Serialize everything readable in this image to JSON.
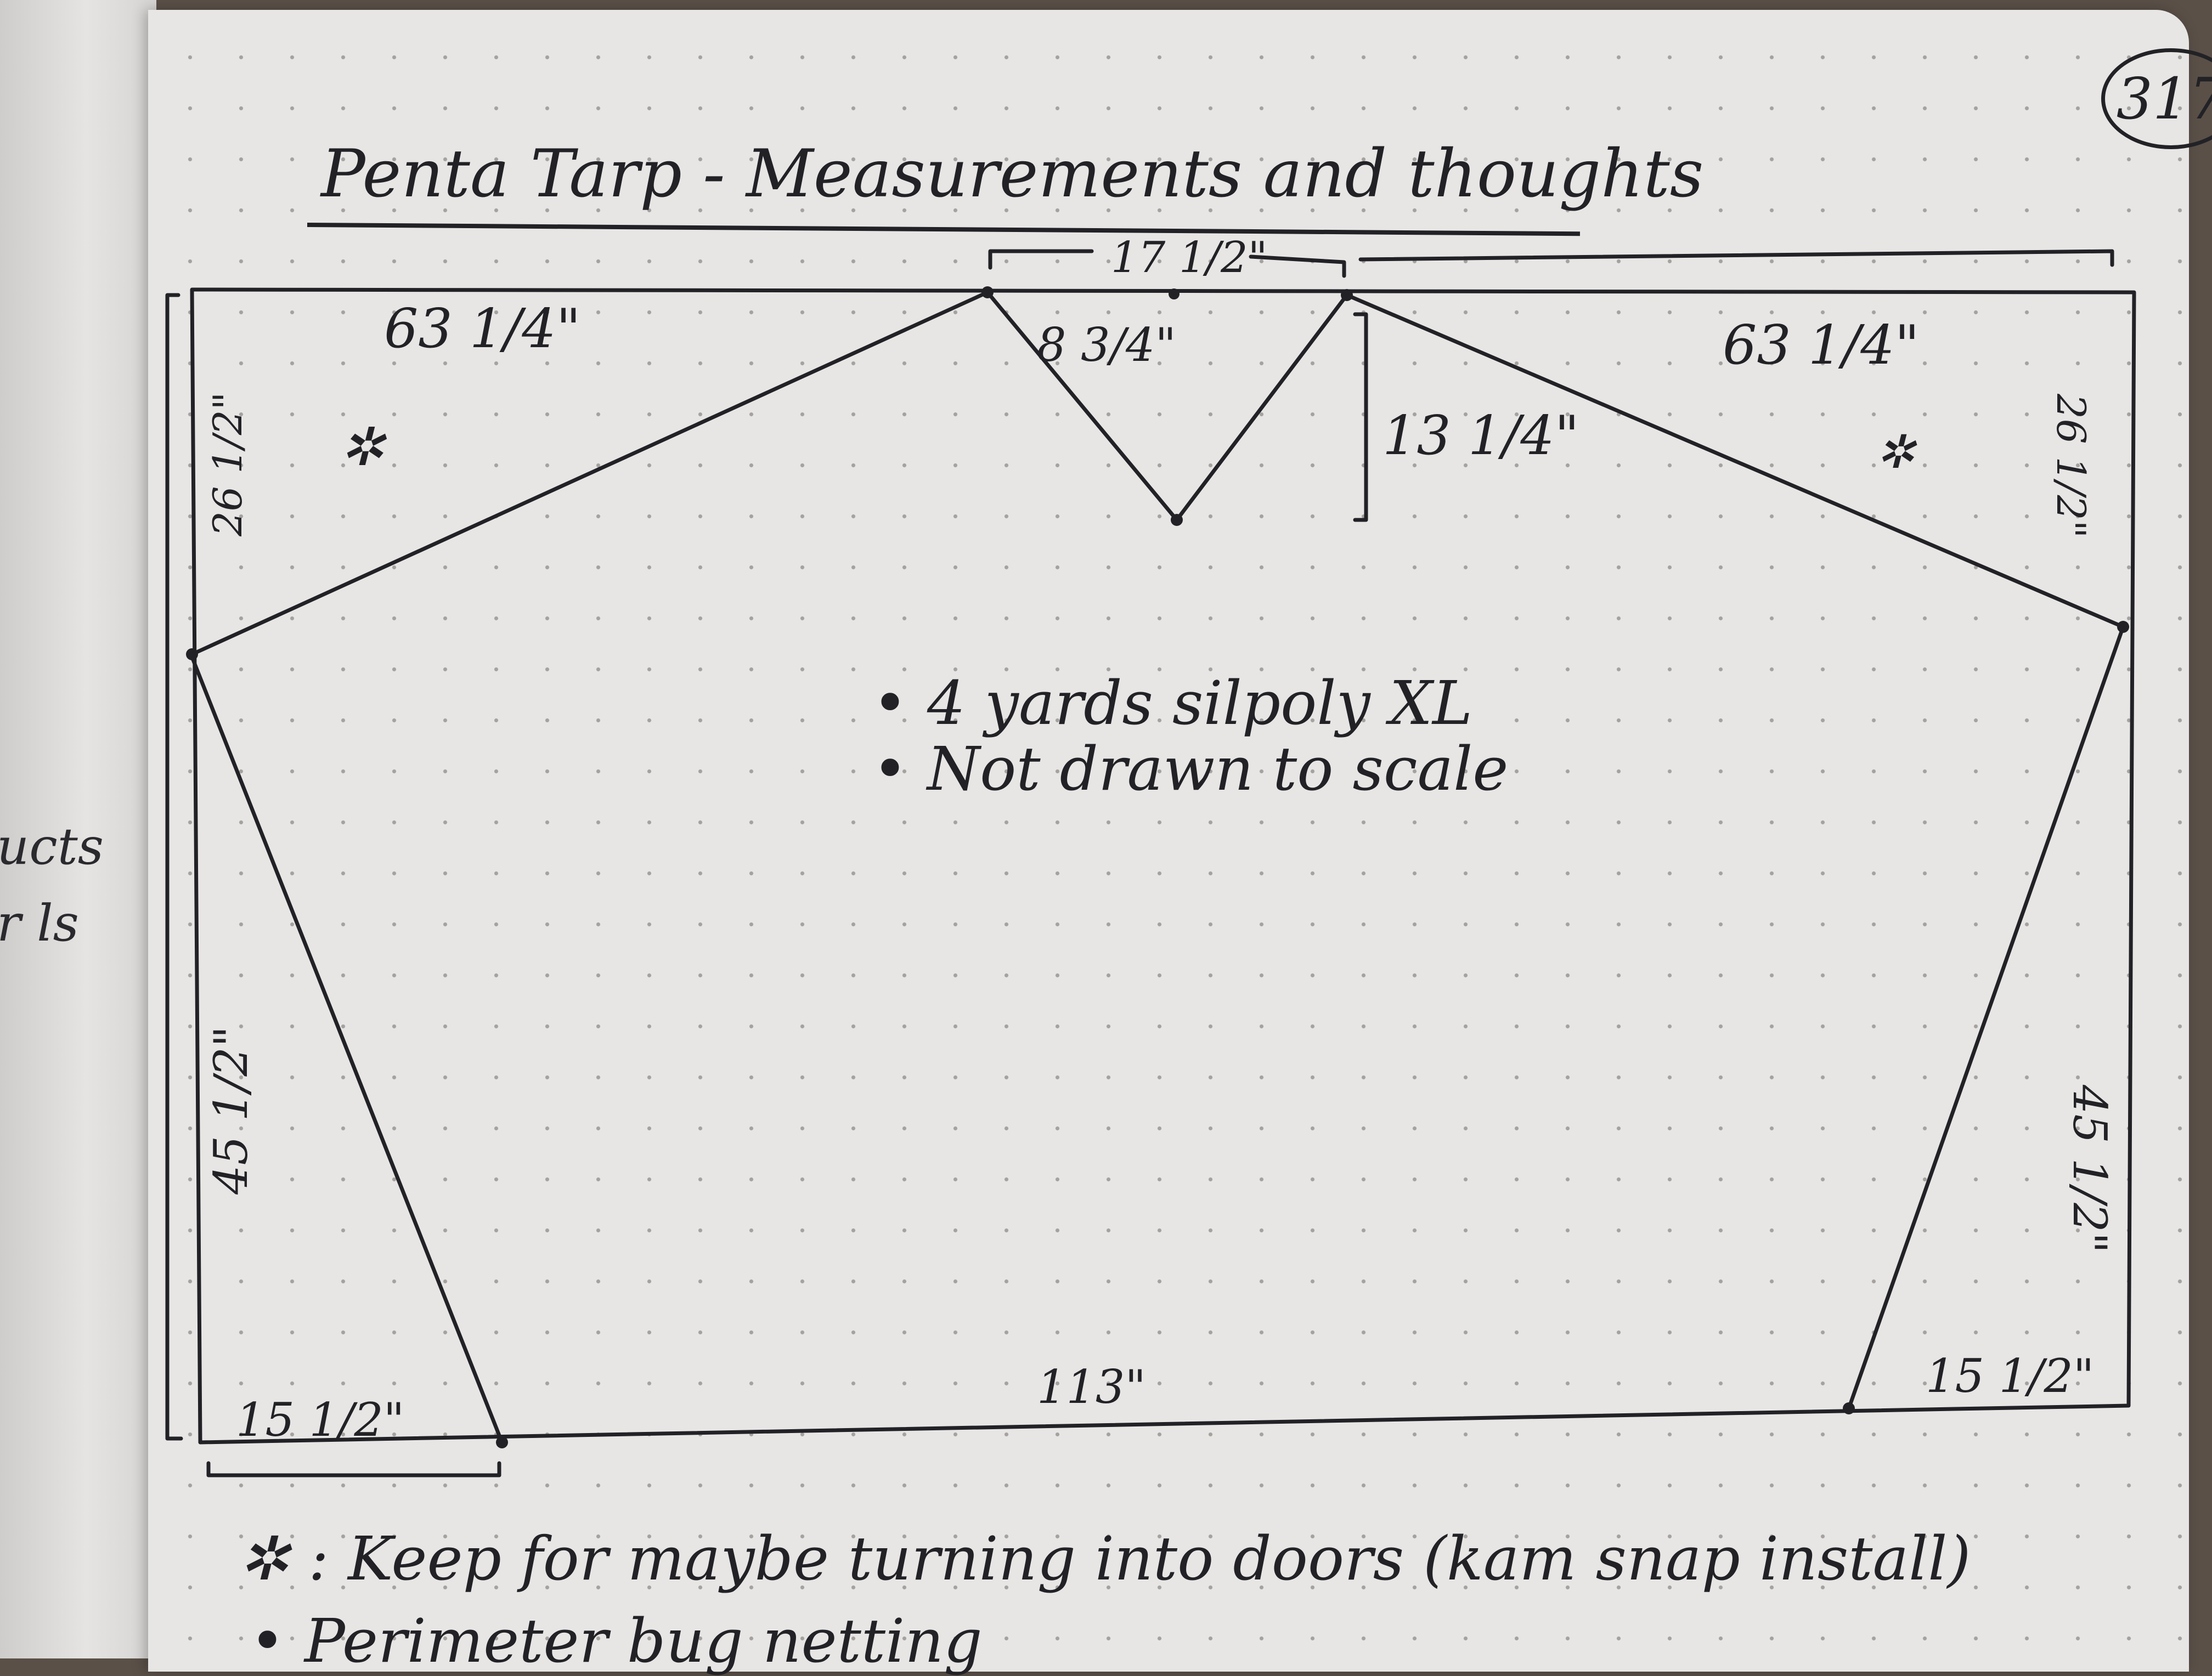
{
  "left_page": {
    "fragments": [
      "ucts",
      "r ls"
    ]
  },
  "page_number": "317",
  "title": "Penta Tarp - Measurements and thoughts",
  "dimensions": {
    "top_overall": "17 1/2\"",
    "top_left": "63 1/4\"",
    "top_right": "63 1/4\"",
    "notch_width": "8 3/4\"",
    "notch_depth": "13 1/4\"",
    "left_upper": "26 1/2\"",
    "right_upper": "26 1/2\"",
    "left_lower": "45 1/2\"",
    "right_lower": "45 1/2\"",
    "bottom": "113\"",
    "bottom_left": "15 1/2\"",
    "bottom_right": "15 1/2\""
  },
  "notes": [
    "4 yards silpoly XL",
    "Not drawn to scale"
  ],
  "legend_symbol": "✲",
  "footer": {
    "keep_note": "Keep for maybe turning into doors (kam snap install)",
    "perimeter_note": "Perimeter bug netting"
  }
}
